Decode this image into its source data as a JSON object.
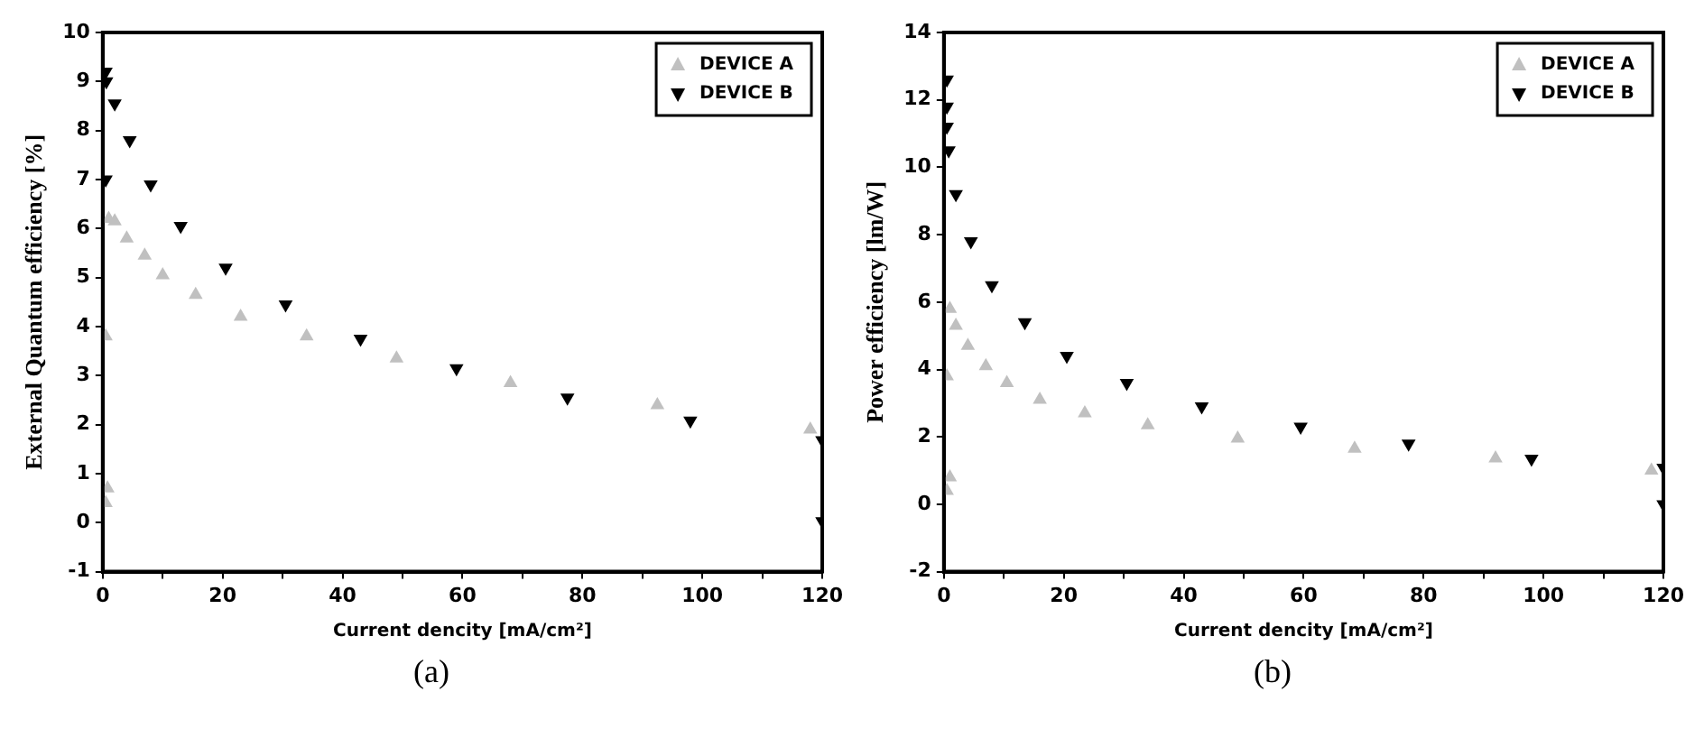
{
  "chart_data": [
    {
      "type": "scatter",
      "title": "(a)",
      "xlabel": "Current dencity [mA/cm²]",
      "ylabel": "External Quantum efficiency [%]",
      "xlim": [
        0,
        120
      ],
      "xticks": [
        0,
        {
          "value": 10,
          "label": null
        },
        20,
        {
          "value": 30,
          "label": null
        },
        40,
        {
          "value": 50,
          "label": null
        },
        60,
        {
          "value": 70,
          "label": null
        },
        80,
        {
          "value": 90,
          "label": null
        },
        100,
        {
          "value": 110,
          "label": null
        },
        120
      ],
      "ylim": [
        -1,
        10
      ],
      "yticks": [
        -1,
        0,
        1,
        2,
        3,
        4,
        5,
        6,
        7,
        8,
        9,
        10
      ],
      "grid": false,
      "legend": "top right",
      "series": [
        {
          "name": "DEVICE A",
          "color": "#c0c0c0",
          "marker": "triangle",
          "x": [
            0.5,
            0.8,
            0.5,
            1,
            2,
            4,
            7,
            10,
            15.5,
            23,
            34,
            49,
            68,
            92.5,
            118
          ],
          "values": [
            0.4,
            0.7,
            3.8,
            6.2,
            6.15,
            5.8,
            5.45,
            5.05,
            4.65,
            4.2,
            3.8,
            3.35,
            2.85,
            2.4,
            1.9
          ]
        },
        {
          "name": "DEVICE B",
          "color": "#000000",
          "marker": "triangle-down",
          "x": [
            0.5,
            0.6,
            0.5,
            2,
            4.5,
            8,
            13,
            20.5,
            30.5,
            43,
            59,
            77.5,
            98,
            120,
            120
          ],
          "values": [
            9.2,
            9.0,
            7.0,
            8.55,
            7.8,
            6.9,
            6.05,
            5.2,
            4.45,
            3.75,
            3.15,
            2.55,
            2.08,
            1.68,
            0.03
          ]
        }
      ]
    },
    {
      "type": "scatter",
      "title": "(b)",
      "xlabel": "Current dencity [mA/cm²]",
      "ylabel": "Power efficiency [lm/W]",
      "xlim": [
        0,
        120
      ],
      "xticks": [
        0,
        {
          "value": 10,
          "label": null
        },
        20,
        {
          "value": 30,
          "label": null
        },
        40,
        {
          "value": 50,
          "label": null
        },
        60,
        {
          "value": 70,
          "label": null
        },
        80,
        {
          "value": 90,
          "label": null
        },
        100,
        {
          "value": 110,
          "label": null
        },
        120
      ],
      "ylim": [
        -2,
        14
      ],
      "yticks": [
        -2,
        0,
        2,
        4,
        6,
        8,
        10,
        12,
        14
      ],
      "grid": false,
      "legend": "top right",
      "series": [
        {
          "name": "DEVICE A",
          "color": "#c0c0c0",
          "marker": "triangle",
          "x": [
            0.5,
            1,
            0.5,
            1,
            2,
            4,
            7,
            10.5,
            16,
            23.5,
            34,
            49,
            68.5,
            92,
            118
          ],
          "values": [
            0.4,
            0.8,
            3.8,
            5.8,
            5.3,
            4.7,
            4.1,
            3.6,
            3.1,
            2.7,
            2.35,
            1.95,
            1.65,
            1.36,
            1.0
          ]
        },
        {
          "name": "DEVICE B",
          "color": "#000000",
          "marker": "triangle-down",
          "x": [
            0.5,
            0.5,
            0.5,
            0.8,
            2,
            4.5,
            8,
            13.5,
            20.5,
            30.5,
            43,
            59.5,
            77.5,
            98,
            120,
            120
          ],
          "values": [
            12.6,
            11.8,
            11.2,
            10.5,
            9.2,
            7.8,
            6.5,
            5.4,
            4.4,
            3.6,
            2.9,
            2.3,
            1.8,
            1.35,
            1.08,
            0.0
          ]
        }
      ]
    }
  ]
}
